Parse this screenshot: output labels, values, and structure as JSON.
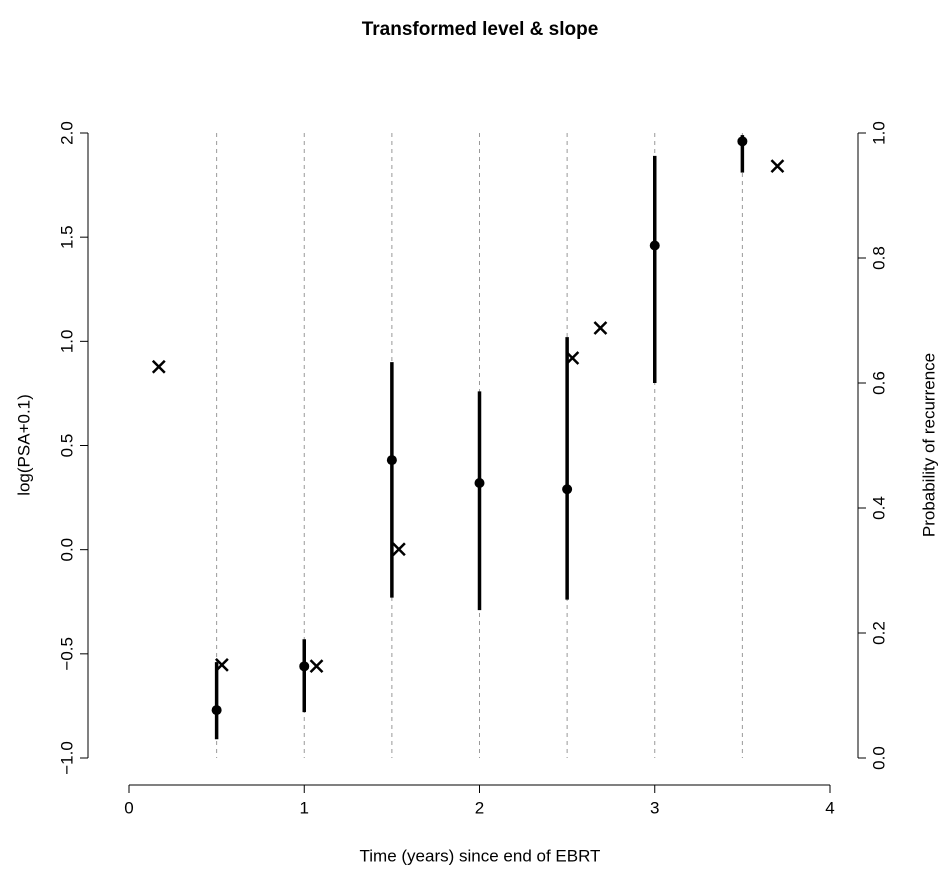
{
  "chart_data": {
    "type": "errorbar",
    "title": "Transformed level & slope",
    "xlabel": "Time (years) since end of EBRT",
    "ylabel": "log(PSA+0.1)",
    "y2label": "Probability of recurrence",
    "xlim": [
      0,
      4
    ],
    "xticks": [
      0,
      1,
      2,
      3,
      4
    ],
    "ylim": [
      -1,
      2
    ],
    "yticks": [
      {
        "value": -1,
        "label": "−1.0"
      },
      {
        "value": -0.5,
        "label": "−0.5"
      },
      {
        "value": 0,
        "label": "0.0"
      },
      {
        "value": 0.5,
        "label": "0.5"
      },
      {
        "value": 1,
        "label": "1.0"
      },
      {
        "value": 1.5,
        "label": "1.5"
      },
      {
        "value": 2,
        "label": "2.0"
      }
    ],
    "y2lim": [
      0,
      1
    ],
    "y2ticks": [
      {
        "value": 0,
        "label": "0.0"
      },
      {
        "value": 0.2,
        "label": "0.2"
      },
      {
        "value": 0.4,
        "label": "0.4"
      },
      {
        "value": 0.6,
        "label": "0.6"
      },
      {
        "value": 0.8,
        "label": "0.8"
      },
      {
        "value": 1,
        "label": "1.0"
      }
    ],
    "vlines": [
      0.5,
      1,
      1.5,
      2,
      2.5,
      3,
      3.5
    ],
    "series": [
      {
        "marker": "dot",
        "color": "#000000",
        "x": [
          0.5,
          1,
          1.5,
          2,
          2.5,
          3,
          3.5
        ],
        "values": [
          -0.77,
          -0.56,
          0.43,
          0.32,
          0.29,
          1.46,
          1.96
        ],
        "lower": [
          -0.91,
          -0.78,
          -0.23,
          -0.29,
          -0.24,
          0.8,
          1.81
        ],
        "upper": [
          -0.54,
          -0.43,
          0.9,
          0.76,
          1.02,
          1.89,
          1.99
        ]
      },
      {
        "marker": "cross",
        "color": "#000000",
        "axis": "y2",
        "x": [
          0.17,
          0.53,
          1.07,
          1.54,
          2.53,
          2.69,
          3.7
        ],
        "values": [
          0.626,
          0.149,
          0.147,
          0.334,
          0.64,
          0.688,
          0.947
        ]
      }
    ]
  }
}
